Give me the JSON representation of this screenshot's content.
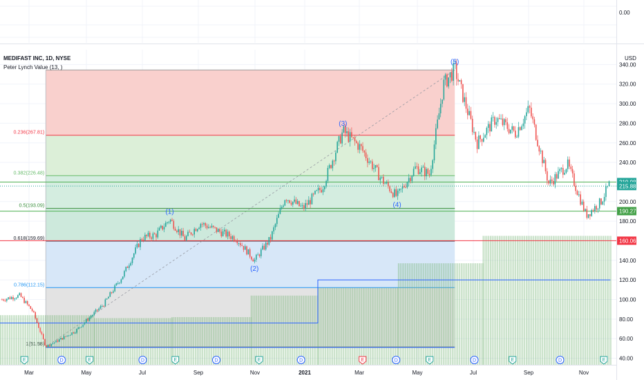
{
  "header": {
    "title": "MEDIFAST INC, 1D, NYSE",
    "indicator": "Peter Lynch Value (13, )"
  },
  "currency": "USD",
  "upper_pane": {
    "value_label": "0.00"
  },
  "colors": {
    "up": "#26a69a",
    "down": "#ef5350",
    "wave": "#2962ff",
    "green_line": "#4caf50",
    "red_line": "#f23645",
    "volume": "#7cb87c"
  },
  "chart_data": {
    "type": "candlestick",
    "y_axis": {
      "min": 30,
      "max": 350,
      "ticks": [
        40,
        60,
        80,
        100,
        120,
        140,
        160,
        180,
        200,
        220,
        240,
        260,
        280,
        300,
        320,
        340
      ]
    },
    "x_tick_labels": [
      "Mar",
      "May",
      "Jul",
      "Sep",
      "Nov",
      "2021",
      "Mar",
      "May",
      "Jul",
      "Sep",
      "Nov"
    ],
    "price_path": [
      [
        "2020-02-01",
        100
      ],
      [
        "2020-02-20",
        104
      ],
      [
        "2020-03-05",
        88
      ],
      [
        "2020-03-19",
        52
      ],
      [
        "2020-04-01",
        58
      ],
      [
        "2020-04-20",
        68
      ],
      [
        "2020-05-01",
        78
      ],
      [
        "2020-05-20",
        95
      ],
      [
        "2020-06-10",
        125
      ],
      [
        "2020-06-30",
        163
      ],
      [
        "2020-07-15",
        166
      ],
      [
        "2020-07-30",
        182
      ],
      [
        "2020-08-15",
        162
      ],
      [
        "2020-09-01",
        178
      ],
      [
        "2020-09-20",
        170
      ],
      [
        "2020-10-10",
        162
      ],
      [
        "2020-10-29",
        140
      ],
      [
        "2020-11-15",
        162
      ],
      [
        "2020-12-01",
        205
      ],
      [
        "2020-12-20",
        193
      ],
      [
        "2021-01-10",
        215
      ],
      [
        "2021-02-01",
        272
      ],
      [
        "2021-02-20",
        255
      ],
      [
        "2021-03-15",
        222
      ],
      [
        "2021-03-31",
        205
      ],
      [
        "2021-04-20",
        235
      ],
      [
        "2021-05-05",
        228
      ],
      [
        "2021-05-20",
        320
      ],
      [
        "2021-06-01",
        335
      ],
      [
        "2021-06-25",
        260
      ],
      [
        "2021-07-15",
        285
      ],
      [
        "2021-08-05",
        270
      ],
      [
        "2021-08-20",
        295
      ],
      [
        "2021-09-10",
        218
      ],
      [
        "2021-09-30",
        238
      ],
      [
        "2021-10-20",
        186
      ],
      [
        "2021-11-05",
        200
      ],
      [
        "2021-11-15",
        219.98
      ]
    ],
    "fibonacci": {
      "levels": [
        {
          "label": "0.236(267.81)",
          "value": 267.81
        },
        {
          "label": "0.382(226.48)",
          "value": 226.48
        },
        {
          "label": "0.5(193.09)",
          "value": 193.09
        },
        {
          "label": "0.618(159.69)",
          "value": 159.69
        },
        {
          "label": "0.786(112.15)",
          "value": 112.15
        },
        {
          "label": "1(51.58)",
          "value": 51.58
        }
      ],
      "top_value": 334.5,
      "start_date": "2020-03-19",
      "end_date": "2021-06-01"
    },
    "elliott_waves": [
      {
        "label": "(1)",
        "date": "2020-07-30",
        "value": 182,
        "position": "above"
      },
      {
        "label": "(2)",
        "date": "2020-10-29",
        "value": 140,
        "position": "below"
      },
      {
        "label": "(3)",
        "date": "2021-02-01",
        "value": 272,
        "position": "above"
      },
      {
        "label": "(4)",
        "date": "2021-03-31",
        "value": 205,
        "position": "below"
      },
      {
        "label": "(5)",
        "date": "2021-06-01",
        "value": 335,
        "position": "above"
      }
    ],
    "horizontal_lines": [
      {
        "value": 219.98,
        "color": "green"
      },
      {
        "value": 215.88,
        "color": "green",
        "style": "dotted"
      },
      {
        "value": 190.27,
        "color": "green"
      },
      {
        "value": 160.06,
        "color": "red"
      }
    ],
    "price_labels": [
      {
        "text": "219.98",
        "value": 219.98,
        "color": "#26a69a"
      },
      {
        "text": "215.88",
        "value": 215.88,
        "color": "#26a69a"
      },
      {
        "text": "190.27",
        "value": 190.27,
        "color": "#43a047"
      },
      {
        "text": "160.06",
        "value": 160.06,
        "color": "#f23645"
      }
    ],
    "lynch_value_steps": [
      {
        "from": "2020-01-15",
        "to": "2020-05-10",
        "value": 84
      },
      {
        "from": "2020-05-10",
        "to": "2020-08-01",
        "value": 81
      },
      {
        "from": "2020-08-01",
        "to": "2020-10-25",
        "value": 82
      },
      {
        "from": "2020-10-25",
        "to": "2021-01-05",
        "value": 104
      },
      {
        "from": "2021-01-05",
        "to": "2021-04-01",
        "value": 112
      },
      {
        "from": "2021-04-01",
        "to": "2021-07-01",
        "value": 137
      },
      {
        "from": "2021-07-01",
        "to": "2021-11-15",
        "value": 165
      }
    ],
    "blue_step_line": [
      {
        "from": "2020-01-15",
        "to": "2021-01-05",
        "value": 76
      },
      {
        "from": "2021-01-05",
        "to": "2021-11-15",
        "value": 120
      }
    ],
    "event_markers": [
      {
        "letter": "E",
        "date": "2020-02-25",
        "kind": "earnings"
      },
      {
        "letter": "D",
        "date": "2020-04-05",
        "kind": "dividend"
      },
      {
        "letter": "E",
        "date": "2020-05-05",
        "kind": "earnings"
      },
      {
        "letter": "D",
        "date": "2020-07-01",
        "kind": "dividend"
      },
      {
        "letter": "E",
        "date": "2020-08-05",
        "kind": "earnings"
      },
      {
        "letter": "D",
        "date": "2020-09-18",
        "kind": "dividend"
      },
      {
        "letter": "E",
        "date": "2020-11-03",
        "kind": "earnings"
      },
      {
        "letter": "D",
        "date": "2020-12-18",
        "kind": "dividend"
      },
      {
        "letter": "E",
        "date": "2021-02-22",
        "kind": "earnings-negative"
      },
      {
        "letter": "D",
        "date": "2021-03-30",
        "kind": "dividend"
      },
      {
        "letter": "E",
        "date": "2021-05-05",
        "kind": "earnings"
      },
      {
        "letter": "D",
        "date": "2021-06-22",
        "kind": "dividend"
      },
      {
        "letter": "E",
        "date": "2021-08-02",
        "kind": "earnings"
      },
      {
        "letter": "D",
        "date": "2021-09-22",
        "kind": "dividend"
      },
      {
        "letter": "E",
        "date": "2021-11-08",
        "kind": "earnings"
      }
    ]
  }
}
